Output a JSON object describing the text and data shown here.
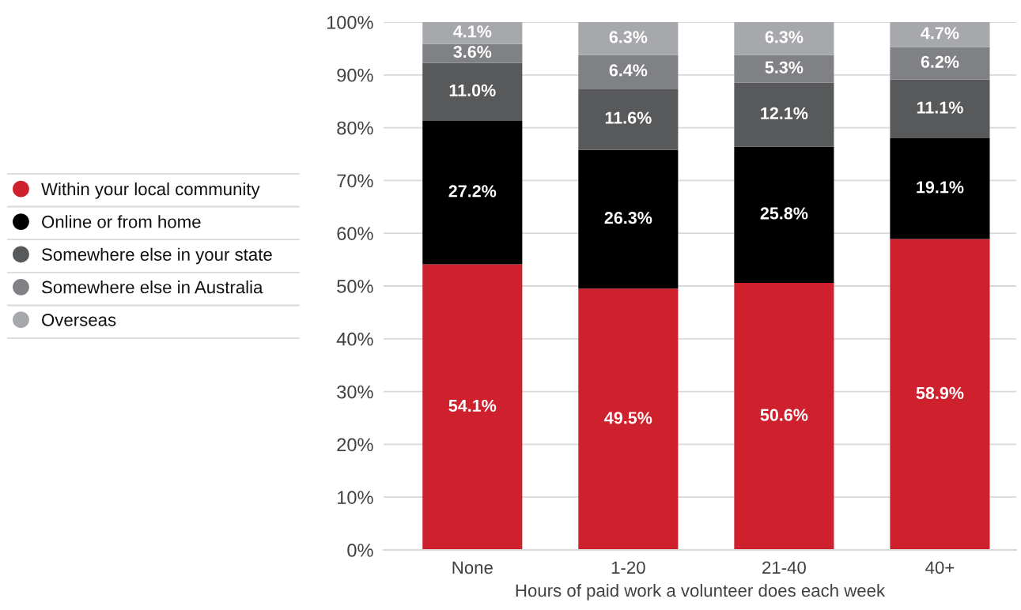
{
  "chart_data": {
    "type": "bar",
    "stacked": true,
    "categories": [
      "None",
      "1-20",
      "21-40",
      "40+"
    ],
    "xlabel": "Hours of paid work a volunteer does each week",
    "series": [
      {
        "name": "Within your local community",
        "color": "#cf202e",
        "values": [
          54.1,
          49.5,
          50.6,
          58.9
        ],
        "value_labels": [
          "54.1%",
          "49.5%",
          "50.6%",
          "58.9%"
        ]
      },
      {
        "name": "Online or from home",
        "color": "#000000",
        "values": [
          27.2,
          26.3,
          25.8,
          19.1
        ],
        "value_labels": [
          "27.2%",
          "26.3%",
          "25.8%",
          "19.1%"
        ]
      },
      {
        "name": "Somewhere else in your state",
        "color": "#58595b",
        "values": [
          11.0,
          11.6,
          12.1,
          11.1
        ],
        "value_labels": [
          "11.0%",
          "11.6%",
          "12.1%",
          "11.1%"
        ]
      },
      {
        "name": "Somewhere else in Australia",
        "color": "#808184",
        "values": [
          3.6,
          6.4,
          5.3,
          6.2
        ],
        "value_labels": [
          "3.6%",
          "6.4%",
          "5.3%",
          "6.2%"
        ]
      },
      {
        "name": "Overseas",
        "color": "#a7a8ab",
        "values": [
          4.1,
          6.3,
          6.3,
          4.7
        ],
        "value_labels": [
          "4.1%",
          "6.3%",
          "6.3%",
          "4.7%"
        ]
      }
    ],
    "ylim": [
      0,
      100
    ],
    "yticks": [
      {
        "value": 0,
        "label": "0%"
      },
      {
        "value": 10,
        "label": "10%"
      },
      {
        "value": 20,
        "label": "20%"
      },
      {
        "value": 30,
        "label": "30%"
      },
      {
        "value": 40,
        "label": "40%"
      },
      {
        "value": 50,
        "label": "50%"
      },
      {
        "value": 60,
        "label": "60%"
      },
      {
        "value": 70,
        "label": "70%"
      },
      {
        "value": 80,
        "label": "80%"
      },
      {
        "value": 90,
        "label": "90%"
      },
      {
        "value": 100,
        "label": "100%"
      }
    ],
    "grid": "y",
    "legend": "left"
  }
}
